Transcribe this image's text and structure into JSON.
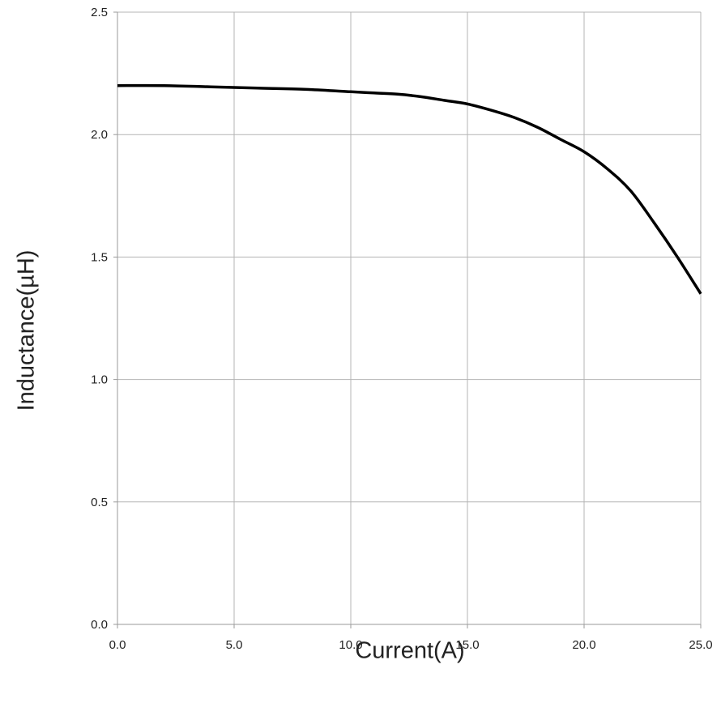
{
  "chart_data": {
    "type": "line",
    "xlabel": "Current(A)",
    "ylabel": "Inductance(µH)",
    "xlim": [
      0,
      25
    ],
    "ylim": [
      0,
      2.5
    ],
    "grid": true,
    "x_ticks": [
      "0.0",
      "5.0",
      "10.0",
      "15.0",
      "20.0",
      "25.0"
    ],
    "y_ticks": [
      "0.0",
      "0.5",
      "1.0",
      "1.5",
      "2.0",
      "2.5"
    ],
    "series": [
      {
        "color": "#000000",
        "x": [
          0,
          2,
          4,
          6,
          8,
          10,
          11,
          12,
          13,
          14,
          15,
          16,
          17,
          18,
          19,
          20,
          21,
          22,
          23,
          24,
          25
        ],
        "y": [
          2.2,
          2.2,
          2.195,
          2.19,
          2.185,
          2.175,
          2.17,
          2.165,
          2.155,
          2.14,
          2.125,
          2.1,
          2.07,
          2.03,
          1.98,
          1.93,
          1.86,
          1.77,
          1.64,
          1.5,
          1.35
        ]
      }
    ]
  }
}
